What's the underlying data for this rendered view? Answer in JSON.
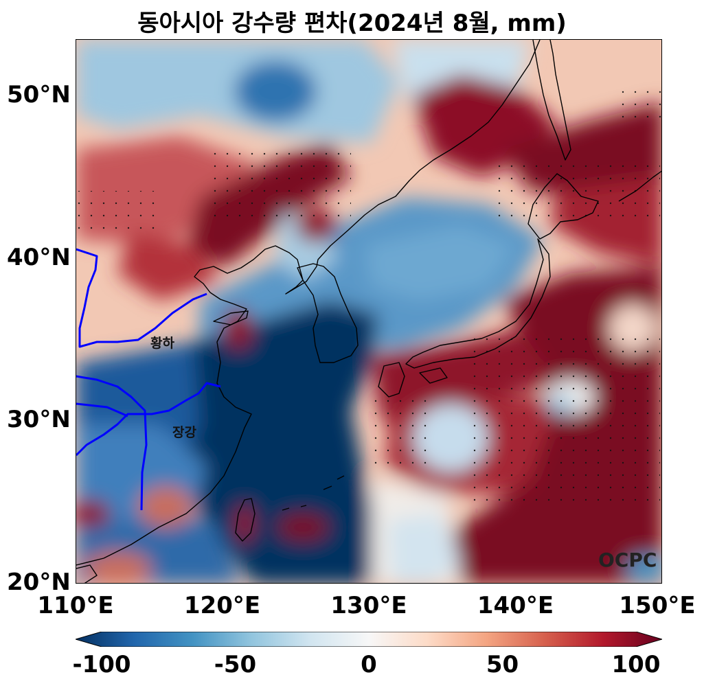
{
  "title": "동아시아 강수량 편차(2024년 8월, mm)",
  "map": {
    "lon_range": [
      110,
      150
    ],
    "lat_range": [
      20,
      53.5
    ],
    "lat_ticks": [
      {
        "value": 50,
        "label": "50°N"
      },
      {
        "value": 40,
        "label": "40°N"
      },
      {
        "value": 30,
        "label": "30°N"
      },
      {
        "value": 20,
        "label": "20°N"
      }
    ],
    "lon_ticks": [
      {
        "value": 110,
        "label": "110°E"
      },
      {
        "value": 120,
        "label": "120°E"
      },
      {
        "value": 130,
        "label": "130°E"
      },
      {
        "value": 140,
        "label": "140°E"
      },
      {
        "value": 150,
        "label": "150°E"
      }
    ],
    "rivers": [
      {
        "name": "황하",
        "label_at": [
          116.3,
          34.9
        ],
        "color": "#0000ff"
      },
      {
        "name": "장강",
        "label_at": [
          117.1,
          29.3
        ],
        "color": "#0000ff"
      }
    ],
    "watermark": "OCPC",
    "coastline_color": "#000000",
    "significance_markers": "dots"
  },
  "colorbar": {
    "min": -100,
    "max": 100,
    "ticks": [
      {
        "value": -100,
        "label": "-100"
      },
      {
        "value": -50,
        "label": "-50"
      },
      {
        "value": 0,
        "label": "0"
      },
      {
        "value": 50,
        "label": "50"
      },
      {
        "value": 100,
        "label": "100"
      }
    ],
    "colormap": [
      "#053061",
      "#2166ac",
      "#4393c3",
      "#92c5de",
      "#d1e5f0",
      "#f7f7f7",
      "#fddbc7",
      "#f4a582",
      "#d6604d",
      "#b2182b",
      "#67001f"
    ],
    "extend": "both"
  }
}
